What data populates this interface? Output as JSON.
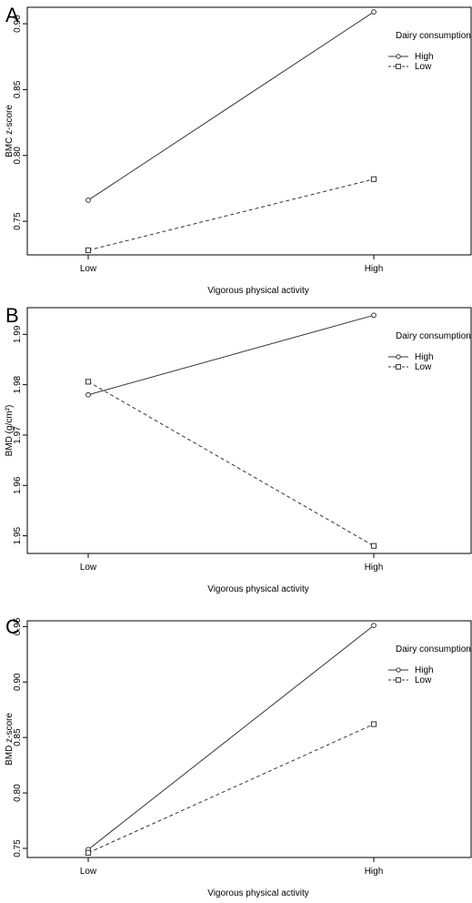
{
  "chart_data": [
    {
      "panel_letter": "A",
      "type": "line",
      "categories": [
        "Low",
        "High"
      ],
      "series": [
        {
          "name": "High",
          "values": [
            0.766,
            0.909
          ],
          "marker": "circle",
          "dash": "solid"
        },
        {
          "name": "Low",
          "values": [
            0.728,
            0.782
          ],
          "marker": "square",
          "dash": "dashed"
        }
      ],
      "xlabel": "Vigorous physical activity",
      "ylabel": "BMC z-score",
      "ylim": [
        0.7245,
        0.9125
      ],
      "yticks": [
        0.75,
        0.8,
        0.85,
        0.9
      ],
      "ytick_labels": [
        "0.75",
        "0.80",
        "0.85",
        "0.90"
      ],
      "legend_title": "Dairy consumption",
      "legend_position": "top-right",
      "grid": false
    },
    {
      "panel_letter": "B",
      "type": "line",
      "categories": [
        "Low",
        "High"
      ],
      "series": [
        {
          "name": "High",
          "values": [
            1.978,
            1.9938
          ],
          "marker": "circle",
          "dash": "solid"
        },
        {
          "name": "Low",
          "values": [
            1.9806,
            1.948
          ],
          "marker": "square",
          "dash": "dashed"
        }
      ],
      "xlabel": "Vigorous physical activity",
      "ylabel": "BMD (g/cm²)",
      "ylim": [
        1.9465,
        1.9953
      ],
      "yticks": [
        1.95,
        1.96,
        1.97,
        1.98,
        1.99
      ],
      "ytick_labels": [
        "1.95",
        "1.96",
        "1.97",
        "1.98",
        "1.99"
      ],
      "legend_title": "Dairy consumption",
      "legend_position": "top-right",
      "grid": false
    },
    {
      "panel_letter": "C",
      "type": "line",
      "categories": [
        "Low",
        "High"
      ],
      "series": [
        {
          "name": "High",
          "values": [
            0.749,
            0.951
          ],
          "marker": "circle",
          "dash": "solid"
        },
        {
          "name": "Low",
          "values": [
            0.746,
            0.862
          ],
          "marker": "square",
          "dash": "dashed"
        }
      ],
      "xlabel": "Vigorous physical activity",
      "ylabel": "BMD z-score",
      "ylim": [
        0.7418,
        0.9552
      ],
      "yticks": [
        0.75,
        0.8,
        0.85,
        0.9,
        0.95
      ],
      "ytick_labels": [
        "0.75",
        "0.80",
        "0.85",
        "0.90",
        "0.95"
      ],
      "legend_title": "Dairy consumption",
      "legend_position": "top-right",
      "grid": false
    }
  ],
  "colors": {
    "line": "#333333",
    "frame": "#000000",
    "background": "#ffffff"
  }
}
